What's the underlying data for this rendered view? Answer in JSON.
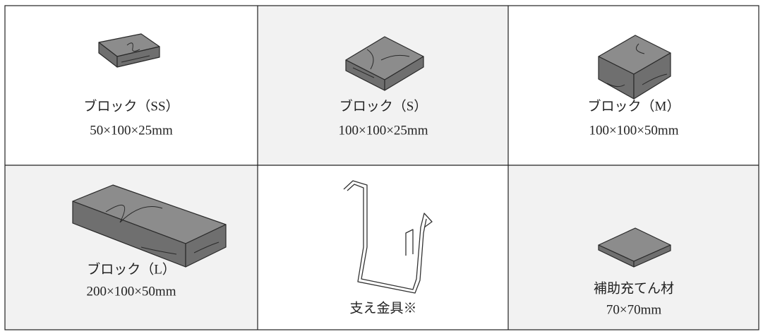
{
  "items": [
    {
      "name": "ブロック（SS）",
      "size": "50×100×25mm"
    },
    {
      "name": "ブロック（S）",
      "size": "100×100×25mm"
    },
    {
      "name": "ブロック（M）",
      "size": "100×100×50mm"
    },
    {
      "name": "ブロック（L）",
      "size": "200×100×50mm"
    },
    {
      "name": "支え金具※"
    },
    {
      "name": "補助充てん材",
      "size": "70×70mm"
    }
  ]
}
